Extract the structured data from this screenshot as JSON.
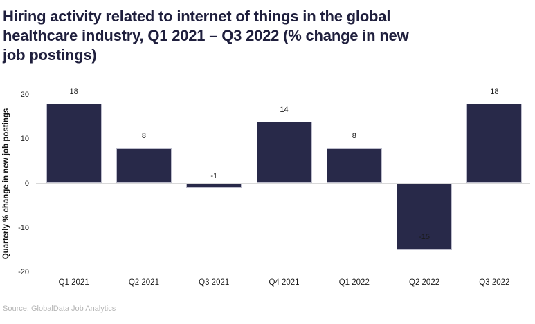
{
  "page": {
    "title_lines": [
      "Hiring activity related to internet of things in the global",
      "healthcare industry, Q1 2021 – Q3 2022 (% change in new",
      "job postings)"
    ],
    "source": "Source: GlobalData Job Analytics"
  },
  "colors": {
    "title": "#1f1f3d",
    "bar_fill": "#282949",
    "bar_border": "#bcbccb",
    "zero_line": "#d9d9d9",
    "tick_text": "#262626",
    "value_label_text": "#1a1a1a",
    "source_text": "#b5b5b5"
  },
  "chart_data": {
    "type": "bar",
    "title": "Hiring activity related to internet of things in the global healthcare industry, Q1 2021 – Q3 2022 (% change in new job postings)",
    "categories": [
      "Q1 2021",
      "Q2 2021",
      "Q3 2021",
      "Q4 2021",
      "Q1 2022",
      "Q2 2022",
      "Q3 2022"
    ],
    "values": [
      18,
      8,
      -1,
      14,
      8,
      -15,
      18
    ],
    "xlabel": "",
    "ylabel": "Quarterly % change in new job postings",
    "ylim": [
      -20,
      20
    ],
    "yticks": [
      20,
      10,
      0,
      -10,
      -20
    ],
    "grid": false,
    "legend": false,
    "data_labels": [
      18,
      8,
      -1,
      14,
      8,
      -15,
      18
    ]
  }
}
